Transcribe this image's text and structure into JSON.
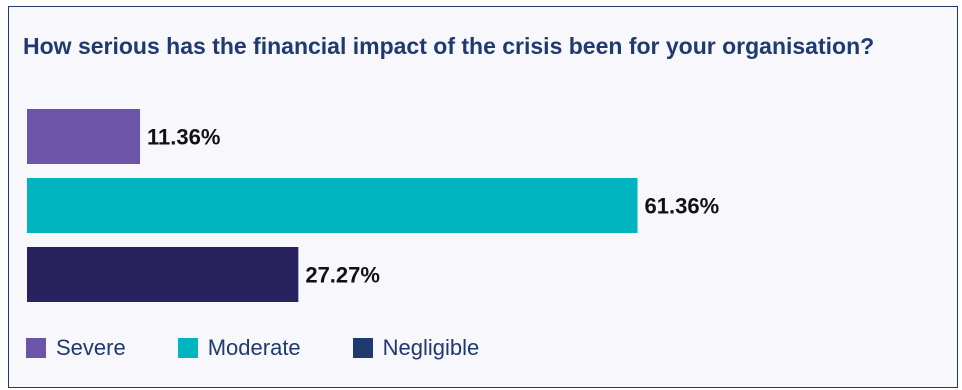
{
  "chart_data": {
    "type": "bar",
    "orientation": "horizontal",
    "title": "How serious has the financial impact of the crisis been for your organisation?",
    "categories": [
      "Severe",
      "Moderate",
      "Negligible"
    ],
    "values": [
      11.36,
      61.36,
      27.27
    ],
    "value_labels": [
      "11.36%",
      "61.36%",
      "27.27%"
    ],
    "colors": [
      "#6c55a8",
      "#00b5bf",
      "#28235e"
    ],
    "legend": {
      "position": "bottom-left",
      "entries": [
        {
          "label": "Severe",
          "color": "#6c55a8"
        },
        {
          "label": "Moderate",
          "color": "#00b5bf"
        },
        {
          "label": "Negligible",
          "color": "#1f3a6e"
        }
      ]
    },
    "xlim": [
      0,
      100
    ],
    "grid": false,
    "axes_visible": false
  }
}
